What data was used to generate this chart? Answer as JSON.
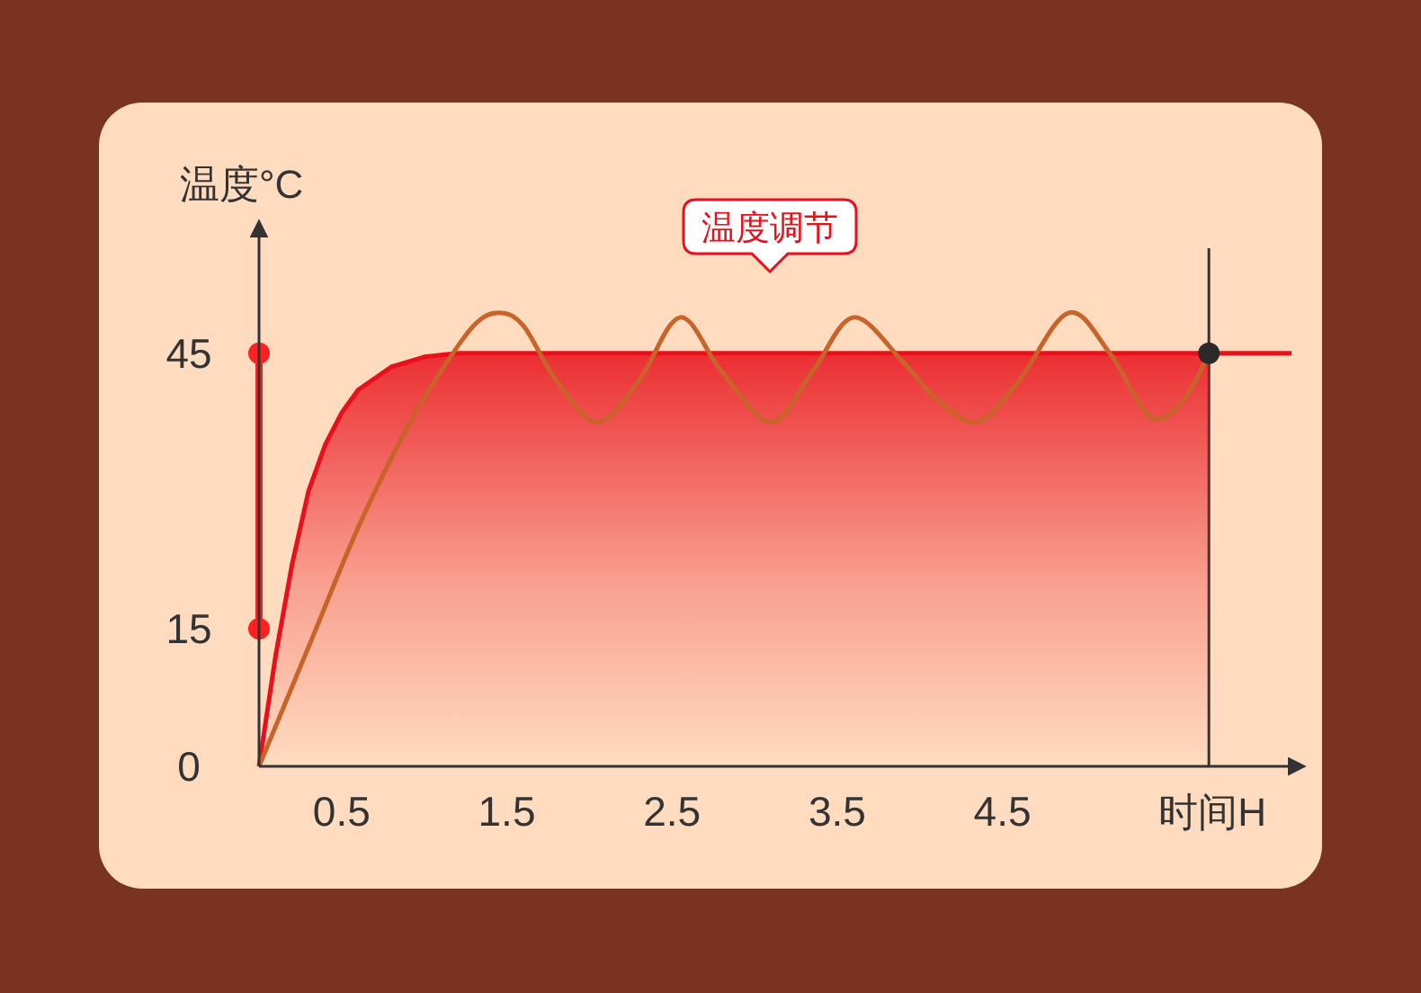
{
  "chart_data": {
    "type": "line",
    "xlabel": "时间H",
    "ylabel": "温度°C",
    "xlim": [
      0,
      6.25
    ],
    "ylim": [
      0,
      58
    ],
    "xticks": [
      0.5,
      1.5,
      2.5,
      3.5,
      4.5
    ],
    "yticks": [
      0,
      15,
      45
    ],
    "grid": false,
    "series": [
      {
        "type": "area",
        "color": "#e8101a",
        "x": [
          0,
          0.1,
          0.2,
          0.3,
          0.4,
          0.5,
          0.6,
          0.8,
          1.0,
          1.2,
          5.75
        ],
        "values": [
          0,
          12,
          22,
          30,
          35,
          38.5,
          41,
          43.5,
          44.6,
          45,
          45
        ]
      },
      {
        "color": "#e8101a",
        "x": [
          5.75,
          6.25
        ],
        "values": [
          45,
          45
        ]
      },
      {
        "color": "#ff2020",
        "marker": "circle",
        "x": [
          0,
          0
        ],
        "values": [
          15,
          45
        ]
      },
      {
        "color": "#c8642a",
        "x": [
          0,
          0.3,
          0.6,
          0.9,
          1.1,
          1.3,
          1.45,
          1.6,
          1.8,
          2.05,
          2.3,
          2.55,
          2.8,
          3.1,
          3.35,
          3.6,
          3.9,
          4.1,
          4.35,
          4.6,
          4.9,
          5.15,
          5.4,
          5.6,
          5.75
        ],
        "values": [
          0,
          13,
          26,
          37,
          43,
          48,
          49.4,
          48,
          42,
          37.5,
          42,
          48.9,
          43,
          37.5,
          43,
          48.9,
          44,
          40,
          37.5,
          42,
          49.4,
          45,
          38,
          40,
          45
        ]
      },
      {
        "type": "scatter",
        "color": "#2a2a2a",
        "x": [
          5.75
        ],
        "values": [
          45
        ]
      }
    ],
    "ref_lines": [
      {
        "axis": "x",
        "value": 5.75,
        "color": "#333333"
      }
    ],
    "annotations": [
      "温度调节"
    ]
  }
}
